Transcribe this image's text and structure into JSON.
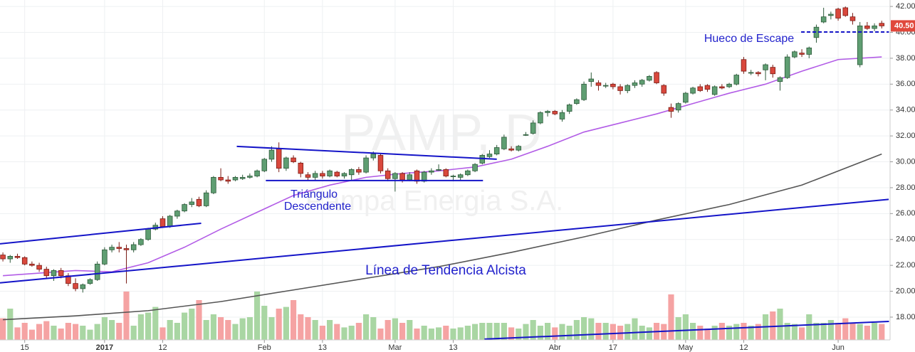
{
  "chart_data": {
    "type": "candlestick",
    "watermark": {
      "symbol": "PAMP, D",
      "company": "Pampa Energia S.A."
    },
    "xlim": [
      -0.4,
      122.15
    ],
    "ylim": [
      16.24,
      42.5
    ],
    "y2lim": [
      0,
      100
    ],
    "grid": true,
    "up_color": "#5f9e72",
    "down_color": "#d9483d",
    "volume_up_color": "#a9d6a3",
    "volume_down_color": "#f5a3a3",
    "xticks": [
      {
        "value": 3,
        "label": "15"
      },
      {
        "value": 14,
        "label": "2017"
      },
      {
        "value": 22,
        "label": "12"
      },
      {
        "value": 36,
        "label": "Feb"
      },
      {
        "value": 44,
        "label": "13"
      },
      {
        "value": 54,
        "label": "Mar"
      },
      {
        "value": 62,
        "label": "13"
      },
      {
        "value": 76,
        "label": "Abr"
      },
      {
        "value": 84,
        "label": "17"
      },
      {
        "value": 94,
        "label": "May"
      },
      {
        "value": 102,
        "label": "12"
      },
      {
        "value": 115,
        "label": "Jun"
      }
    ],
    "yticks": [
      {
        "value": 18,
        "label": "18.00"
      },
      {
        "value": 20,
        "label": "20.00"
      },
      {
        "value": 22,
        "label": "22.00"
      },
      {
        "value": 24,
        "label": "24.00"
      },
      {
        "value": 26,
        "label": "26.00"
      },
      {
        "value": 28,
        "label": "28.00"
      },
      {
        "value": 30,
        "label": "30.00"
      },
      {
        "value": 32,
        "label": "32.00"
      },
      {
        "value": 34,
        "label": "34.00"
      },
      {
        "value": 36,
        "label": "36.00"
      },
      {
        "value": 38,
        "label": "38.00"
      },
      {
        "value": 40,
        "label": "40.00"
      },
      {
        "value": 42,
        "label": "42.00"
      }
    ],
    "last_price": {
      "value": 40.5,
      "label": "40.50",
      "color": "#e0483c"
    },
    "candles": [
      [
        22.8,
        23.0,
        22.3,
        22.5
      ],
      [
        22.5,
        22.8,
        22.2,
        22.7
      ],
      [
        22.7,
        22.9,
        22.5,
        22.6
      ],
      [
        22.6,
        22.7,
        22.0,
        22.1
      ],
      [
        22.1,
        22.3,
        21.9,
        22.0
      ],
      [
        22.0,
        22.2,
        21.5,
        21.7
      ],
      [
        21.7,
        21.9,
        21.0,
        21.2
      ],
      [
        21.2,
        21.7,
        20.8,
        21.6
      ],
      [
        21.6,
        21.8,
        21.0,
        21.2
      ],
      [
        21.2,
        21.4,
        20.4,
        20.6
      ],
      [
        20.6,
        21.0,
        20.0,
        20.2
      ],
      [
        20.2,
        20.6,
        19.9,
        20.5
      ],
      [
        20.6,
        21.0,
        20.5,
        20.9
      ],
      [
        20.9,
        22.3,
        20.8,
        22.1
      ],
      [
        22.1,
        23.4,
        22.0,
        23.2
      ],
      [
        23.2,
        23.6,
        23.0,
        23.4
      ],
      [
        23.4,
        23.8,
        23.0,
        23.3
      ],
      [
        23.3,
        23.6,
        20.6,
        23.2
      ],
      [
        23.2,
        23.8,
        23.0,
        23.6
      ],
      [
        23.6,
        24.1,
        23.5,
        24.0
      ],
      [
        24.0,
        24.9,
        23.9,
        24.8
      ],
      [
        24.8,
        25.3,
        24.7,
        25.1
      ],
      [
        25.6,
        25.8,
        24.9,
        25.0
      ],
      [
        25.0,
        25.9,
        24.9,
        25.8
      ],
      [
        25.8,
        26.3,
        25.6,
        26.2
      ],
      [
        26.2,
        26.8,
        26.1,
        26.7
      ],
      [
        26.7,
        27.2,
        26.5,
        26.9
      ],
      [
        27.1,
        27.3,
        26.5,
        26.6
      ],
      [
        26.6,
        27.8,
        26.5,
        27.6
      ],
      [
        27.6,
        28.9,
        27.5,
        28.8
      ],
      [
        28.8,
        29.5,
        28.5,
        28.6
      ],
      [
        28.6,
        28.9,
        28.3,
        28.5
      ],
      [
        28.6,
        28.9,
        28.5,
        28.8
      ],
      [
        28.7,
        29.0,
        28.6,
        28.8
      ],
      [
        28.8,
        29.1,
        28.7,
        28.9
      ],
      [
        28.9,
        29.4,
        28.8,
        29.3
      ],
      [
        29.3,
        30.3,
        29.2,
        30.2
      ],
      [
        30.2,
        31.2,
        30.0,
        30.9
      ],
      [
        31.0,
        31.5,
        29.2,
        29.5
      ],
      [
        29.5,
        30.4,
        29.3,
        30.3
      ],
      [
        30.3,
        30.5,
        29.9,
        30.0
      ],
      [
        29.9,
        30.0,
        28.8,
        29.1
      ],
      [
        29.0,
        29.2,
        28.6,
        28.8
      ],
      [
        28.8,
        29.3,
        28.6,
        29.1
      ],
      [
        29.1,
        29.3,
        28.7,
        28.9
      ],
      [
        28.9,
        29.4,
        28.8,
        29.3
      ],
      [
        29.2,
        29.3,
        28.8,
        28.9
      ],
      [
        28.9,
        29.2,
        28.7,
        29.1
      ],
      [
        29.0,
        29.5,
        28.6,
        29.4
      ],
      [
        29.4,
        29.6,
        29.0,
        29.2
      ],
      [
        29.2,
        30.5,
        29.1,
        30.3
      ],
      [
        30.3,
        30.8,
        30.1,
        30.6
      ],
      [
        30.5,
        30.6,
        29.1,
        29.3
      ],
      [
        29.3,
        29.5,
        28.5,
        28.7
      ],
      [
        28.7,
        29.2,
        27.7,
        29.1
      ],
      [
        29.1,
        29.2,
        28.4,
        28.6
      ],
      [
        28.6,
        29.2,
        28.5,
        29.0
      ],
      [
        29.3,
        29.4,
        28.3,
        28.5
      ],
      [
        28.5,
        29.3,
        28.4,
        29.2
      ],
      [
        29.2,
        29.5,
        29.0,
        29.3
      ],
      [
        29.4,
        29.8,
        29.3,
        29.4
      ],
      [
        29.4,
        29.5,
        28.8,
        28.9
      ],
      [
        28.9,
        29.0,
        28.5,
        28.9
      ],
      [
        28.8,
        29.1,
        28.6,
        29.0
      ],
      [
        29.0,
        29.4,
        28.9,
        29.3
      ],
      [
        29.3,
        29.9,
        29.2,
        29.8
      ],
      [
        29.9,
        30.6,
        29.8,
        30.5
      ],
      [
        30.4,
        30.9,
        30.3,
        30.6
      ],
      [
        30.6,
        31.3,
        30.5,
        31.1
      ],
      [
        31.0,
        32.1,
        30.9,
        31.9
      ],
      [
        31.0,
        31.2,
        30.8,
        30.9
      ],
      [
        30.9,
        31.3,
        30.8,
        31.2
      ],
      [
        32.1,
        32.3,
        32.0,
        32.1
      ],
      [
        32.2,
        33.2,
        32.1,
        33.0
      ],
      [
        33.0,
        33.9,
        32.9,
        33.8
      ],
      [
        33.8,
        34.0,
        33.5,
        33.9
      ],
      [
        33.9,
        34.0,
        33.6,
        33.7
      ],
      [
        33.3,
        34.0,
        33.1,
        33.8
      ],
      [
        33.9,
        34.5,
        33.7,
        34.4
      ],
      [
        34.5,
        34.9,
        34.4,
        34.8
      ],
      [
        34.8,
        36.2,
        34.7,
        36.0
      ],
      [
        36.2,
        36.9,
        35.8,
        36.4
      ],
      [
        36.1,
        36.3,
        35.5,
        35.9
      ],
      [
        35.9,
        36.1,
        35.7,
        35.9
      ],
      [
        36.0,
        36.1,
        35.6,
        35.8
      ],
      [
        35.8,
        36.0,
        35.2,
        35.5
      ],
      [
        35.5,
        36.0,
        35.3,
        35.9
      ],
      [
        35.9,
        36.3,
        35.7,
        36.1
      ],
      [
        36.0,
        36.4,
        35.8,
        36.3
      ],
      [
        36.3,
        36.7,
        36.2,
        36.6
      ],
      [
        36.9,
        37.0,
        36.0,
        36.1
      ],
      [
        35.9,
        36.0,
        35.1,
        35.3
      ],
      [
        34.2,
        34.5,
        33.4,
        33.9
      ],
      [
        34.0,
        34.6,
        33.8,
        34.5
      ],
      [
        34.6,
        35.4,
        34.5,
        35.3
      ],
      [
        35.3,
        35.8,
        35.2,
        35.7
      ],
      [
        35.8,
        36.0,
        35.4,
        35.5
      ],
      [
        35.9,
        36.0,
        35.4,
        35.6
      ],
      [
        35.2,
        35.9,
        35.1,
        35.8
      ],
      [
        35.8,
        36.0,
        35.6,
        35.7
      ],
      [
        35.8,
        36.1,
        35.7,
        36.0
      ],
      [
        36.0,
        36.8,
        35.9,
        36.7
      ],
      [
        37.9,
        38.1,
        36.8,
        37.0
      ],
      [
        36.9,
        37.1,
        36.7,
        36.9
      ],
      [
        36.9,
        37.0,
        36.6,
        36.8
      ],
      [
        37.1,
        37.6,
        36.3,
        37.5
      ],
      [
        37.3,
        37.5,
        36.5,
        36.8
      ],
      [
        36.2,
        36.6,
        35.5,
        36.5
      ],
      [
        36.5,
        38.3,
        36.4,
        38.1
      ],
      [
        38.1,
        38.6,
        38.0,
        38.5
      ],
      [
        38.4,
        38.7,
        38.1,
        38.3
      ],
      [
        38.3,
        38.9,
        38.0,
        38.8
      ],
      [
        39.6,
        40.6,
        39.2,
        40.4
      ],
      [
        40.8,
        41.9,
        40.7,
        41.2
      ],
      [
        41.3,
        41.6,
        41.0,
        41.4
      ],
      [
        41.8,
        41.9,
        40.9,
        41.1
      ],
      [
        41.9,
        42.0,
        41.2,
        41.3
      ],
      [
        41.2,
        41.5,
        40.6,
        40.9
      ],
      [
        37.5,
        40.8,
        37.3,
        40.5
      ],
      [
        40.5,
        40.8,
        40.2,
        40.3
      ],
      [
        40.3,
        40.7,
        40.1,
        40.5
      ],
      [
        40.7,
        40.9,
        40.3,
        40.5
      ]
    ],
    "volume": [
      38,
      55,
      22,
      30,
      18,
      28,
      33,
      25,
      20,
      30,
      28,
      25,
      18,
      28,
      40,
      35,
      30,
      85,
      25,
      45,
      48,
      58,
      22,
      35,
      30,
      48,
      55,
      70,
      35,
      45,
      40,
      35,
      28,
      38,
      40,
      85,
      60,
      40,
      55,
      58,
      70,
      45,
      40,
      35,
      25,
      35,
      28,
      22,
      25,
      30,
      45,
      40,
      20,
      35,
      38,
      30,
      35,
      20,
      25,
      20,
      22,
      25,
      20,
      22,
      25,
      28,
      30,
      30,
      30,
      30,
      22,
      20,
      28,
      35,
      25,
      30,
      22,
      28,
      25,
      35,
      40,
      38,
      30,
      30,
      28,
      25,
      28,
      38,
      25,
      22,
      30,
      28,
      80,
      40,
      45,
      30,
      25,
      20,
      25,
      30,
      25,
      28,
      30,
      25,
      28,
      45,
      50,
      55,
      30,
      28,
      22,
      45,
      30,
      30,
      35,
      30,
      38,
      30,
      28,
      25,
      30,
      28
    ],
    "series": [
      {
        "name": "MA20",
        "color": "#b25ce6",
        "x": [
          0,
          10,
          15,
          20,
          25,
          30,
          35,
          40,
          45,
          50,
          55,
          60,
          65,
          70,
          75,
          80,
          85,
          90,
          95,
          100,
          105,
          110,
          115,
          121
        ],
        "values": [
          21.2,
          21.6,
          21.5,
          22.2,
          23.4,
          24.8,
          26.1,
          27.4,
          28.2,
          28.8,
          29.1,
          29.3,
          29.6,
          30.2,
          31.2,
          32.3,
          33.0,
          33.7,
          34.5,
          35.3,
          36.0,
          37.0,
          37.9,
          38.1
        ]
      },
      {
        "name": "MA100",
        "color": "#555555",
        "x": [
          0,
          10,
          20,
          30,
          40,
          50,
          60,
          70,
          80,
          90,
          100,
          110,
          121
        ],
        "values": [
          17.8,
          18.1,
          18.5,
          19.2,
          20.1,
          21.0,
          21.9,
          23.0,
          24.2,
          25.5,
          26.7,
          28.2,
          30.6
        ]
      }
    ],
    "lines": [
      {
        "color": "#1414c8",
        "x": [
          -0.4,
          27.3
        ],
        "values": [
          23.66,
          25.25
        ]
      },
      {
        "color": "#1414c8",
        "x": [
          -0.4,
          121.96
        ],
        "values": [
          20.65,
          27.1
        ]
      },
      {
        "color": "#1414c8",
        "x": [
          32.2,
          68
        ],
        "values": [
          31.19,
          30.2
        ]
      },
      {
        "color": "#1414c8",
        "x": [
          36.2,
          66.1
        ],
        "values": [
          28.55,
          28.55
        ]
      },
      {
        "color": "#1414c8",
        "x": [
          66.3,
          122
        ],
        "values": [
          16.3,
          17.67
        ]
      },
      {
        "color": "#1414c8",
        "dashed": true,
        "x": [
          109.9,
          122
        ],
        "values": [
          40.03,
          40.03
        ]
      }
    ],
    "annotations": {
      "triangle": [
        "Triángulo",
        "Descendente"
      ],
      "trend": "Línea de Tendencia Alcista",
      "gap": "Hueco de Escape"
    }
  }
}
